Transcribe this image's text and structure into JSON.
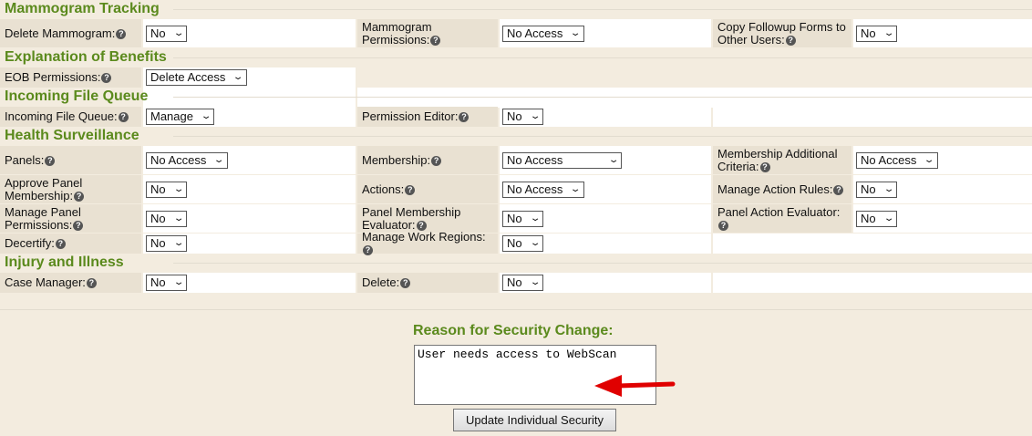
{
  "sections": [
    {
      "title": "Mammogram Tracking",
      "rows": [
        [
          {
            "label": "Delete Mammogram:",
            "value": "No"
          },
          {
            "label": "Mammogram Permissions:",
            "value": "No Access"
          },
          {
            "label": "Copy Followup Forms to Other Users:",
            "value": "No"
          }
        ]
      ]
    },
    {
      "title": "Explanation of Benefits",
      "rows": [
        [
          {
            "label": "EOB Permissions:",
            "value": "Delete Access"
          }
        ]
      ]
    },
    {
      "title": "Incoming File Queue",
      "rows": [
        [
          {
            "label": "Incoming File Queue:",
            "value": "Manage"
          },
          {
            "label": "Permission Editor:",
            "value": "No"
          }
        ]
      ]
    },
    {
      "title": "Health Surveillance",
      "rows": [
        [
          {
            "label": "Panels:",
            "value": "No Access"
          },
          {
            "label": "Membership:",
            "value": "No Access"
          },
          {
            "label": "Membership Additional Criteria:",
            "value": "No Access"
          }
        ],
        [
          {
            "label": "Approve Panel Membership:",
            "value": "No"
          },
          {
            "label": "Actions:",
            "value": "No Access"
          },
          {
            "label": "Manage Action Rules:",
            "value": "No"
          }
        ],
        [
          {
            "label": "Manage Panel Permissions:",
            "value": "No"
          },
          {
            "label": "Panel Membership Evaluator:",
            "value": "No"
          },
          {
            "label": "Panel Action Evaluator:",
            "value": "No"
          }
        ],
        [
          {
            "label": "Decertify:",
            "value": "No"
          },
          {
            "label": "Manage Work Regions:",
            "value": "No"
          }
        ]
      ]
    },
    {
      "title": "Injury and Illness",
      "rows": [
        [
          {
            "label": "Case Manager:",
            "value": "No"
          },
          {
            "label": "Delete:",
            "value": "No"
          }
        ]
      ]
    }
  ],
  "reason": {
    "title": "Reason for Security Change:",
    "text": "User needs access to WebScan"
  },
  "update_button": "Update Individual Security",
  "colors": {
    "accent": "#5b8a1d",
    "arrow": "#e00000"
  }
}
